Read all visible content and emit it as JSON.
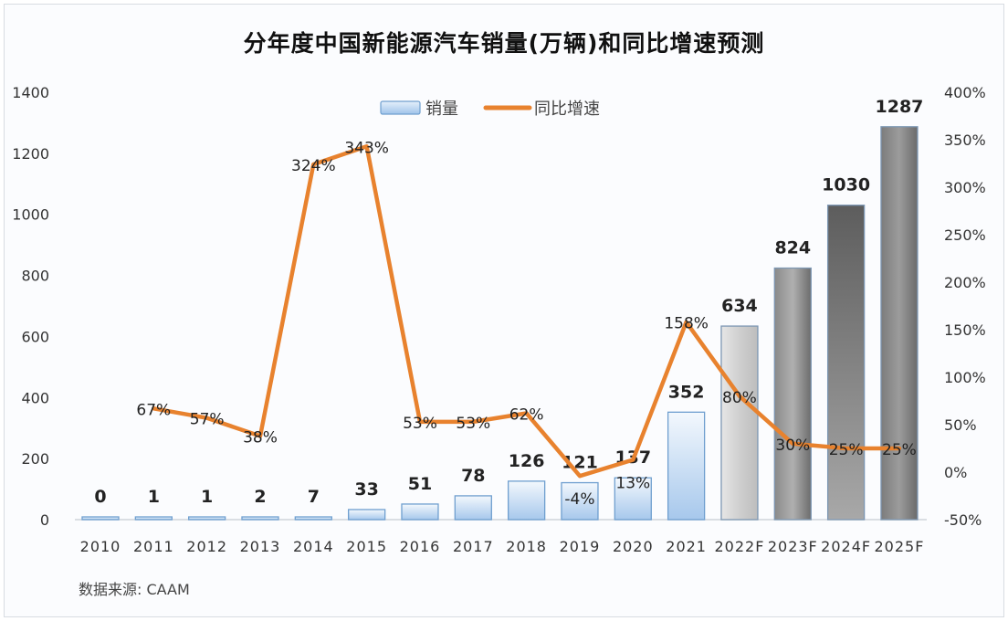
{
  "title": "分年度中国新能源汽车销量(万辆)和同比增速预测",
  "source": "数据来源:  CAAM",
  "chart_data": {
    "type": "bar+line",
    "title": "分年度中国新能源汽车销量(万辆)和同比增速预测",
    "categories": [
      "2010",
      "2011",
      "2012",
      "2013",
      "2014",
      "2015",
      "2016",
      "2017",
      "2018",
      "2019",
      "2020",
      "2021",
      "2022F",
      "2023F",
      "2024F",
      "2025F"
    ],
    "series": [
      {
        "name": "销量",
        "type": "bar",
        "axis": "left",
        "values": [
          0,
          1,
          1,
          2,
          7,
          33,
          51,
          78,
          126,
          121,
          137,
          352,
          634,
          824,
          1030,
          1287
        ],
        "labels": [
          "0",
          "1",
          "1",
          "2",
          "7",
          "33",
          "51",
          "78",
          "126",
          "121",
          "137",
          "352",
          "634",
          "824",
          "1030",
          "1287"
        ]
      },
      {
        "name": "同比增速",
        "type": "line",
        "axis": "right",
        "values": [
          null,
          67,
          57,
          38,
          324,
          343,
          53,
          53,
          62,
          -4,
          13,
          158,
          80,
          30,
          25,
          25
        ],
        "labels": [
          "",
          "67%",
          "57%",
          "38%",
          "324%",
          "343%",
          "53%",
          "53%",
          "62%",
          "-4%",
          "13%",
          "158%",
          "80%",
          "30%",
          "25%",
          "25%"
        ]
      }
    ],
    "y_left": {
      "min": 0,
      "max": 1400,
      "ticks": [
        "0",
        "200",
        "400",
        "600",
        "800",
        "1000",
        "1200",
        "1400"
      ]
    },
    "y_right": {
      "min": -50,
      "max": 400,
      "ticks": [
        "-50%",
        "0%",
        "50%",
        "100%",
        "150%",
        "200%",
        "250%",
        "300%",
        "350%",
        "400%"
      ]
    },
    "legend": {
      "position": "top-center",
      "entries": [
        "销量",
        "同比增速"
      ]
    },
    "grid": false,
    "colors": {
      "line": "#e8822e",
      "bar_actual_top": "#eef5fc",
      "bar_actual_bottom": "#a9c9ec",
      "bar_border": "#6f9fcf",
      "bar_forecast_light": "#d4d4d4",
      "bar_forecast_dark": "#6e6e6e"
    }
  }
}
